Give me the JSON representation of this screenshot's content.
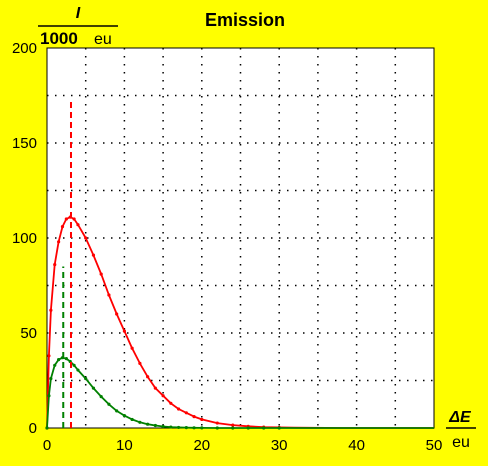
{
  "chart_data": {
    "type": "line",
    "title": "Emission",
    "ylabel": {
      "symbol": "I",
      "denominator_number": "1000",
      "denominator_unit": "eu"
    },
    "xlabel": {
      "symbol": "ΔE",
      "denominator_unit": "eu"
    },
    "xlim": [
      0,
      50
    ],
    "ylim": [
      0,
      200
    ],
    "xticks": [
      "0",
      "10",
      "20",
      "30",
      "40",
      "50"
    ],
    "yticks": [
      "0",
      "50",
      "100",
      "150",
      "200"
    ],
    "grid": true,
    "series": [
      {
        "color": "#ff0000",
        "x": [
          0,
          0.25,
          0.5,
          1,
          1.5,
          2,
          2.5,
          3,
          3.5,
          4,
          5,
          6,
          7,
          8,
          9,
          10,
          11,
          12,
          13,
          14,
          15,
          16,
          17,
          18,
          19,
          20,
          22,
          24,
          26,
          28,
          30,
          32,
          34,
          36,
          38,
          40,
          42,
          44,
          46,
          48,
          50
        ],
        "y": [
          0,
          38,
          62,
          86,
          98,
          106,
          110,
          111,
          110,
          107,
          100,
          91,
          81,
          70,
          60,
          51,
          42,
          34,
          27,
          21,
          17,
          13,
          10,
          8,
          6,
          4.5,
          2.6,
          1.5,
          0.9,
          0.5,
          0.3,
          0.15,
          0.1,
          0.05,
          0,
          0,
          0,
          0,
          0,
          0,
          0
        ]
      },
      {
        "color": "#008000",
        "x": [
          0,
          0.25,
          0.5,
          1,
          1.5,
          2,
          2.5,
          3,
          3.5,
          4,
          5,
          6,
          7,
          8,
          9,
          10,
          11,
          12,
          13,
          14,
          15,
          16,
          17,
          18,
          19,
          20,
          22,
          24,
          26,
          28,
          30,
          32,
          34,
          36,
          38,
          40,
          42,
          44,
          46,
          48,
          50
        ],
        "y": [
          0,
          17,
          26,
          33,
          36,
          37,
          36.5,
          35,
          33,
          30.5,
          26,
          21,
          16.5,
          12.5,
          9,
          6.5,
          4.5,
          3,
          2,
          1.3,
          0.8,
          0.5,
          0.3,
          0.2,
          0.1,
          0.05,
          0,
          0,
          0,
          0,
          0,
          0,
          0,
          0,
          0,
          0,
          0,
          0,
          0,
          0,
          0
        ]
      }
    ],
    "markers": [
      {
        "color": "#ff0000",
        "x": 3.1,
        "y": 172
      },
      {
        "color": "#008000",
        "x": 2.1,
        "y": 85
      }
    ]
  }
}
